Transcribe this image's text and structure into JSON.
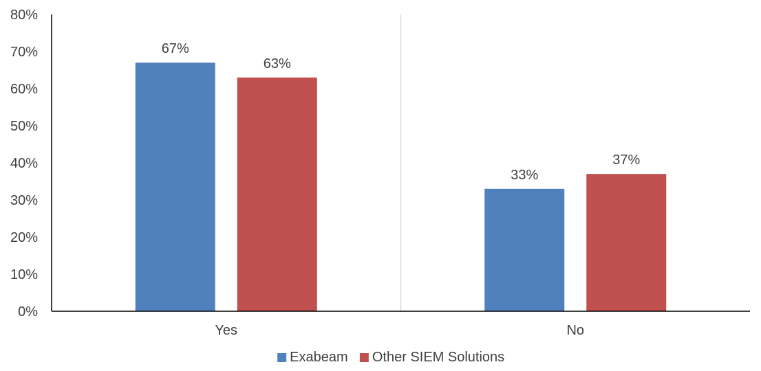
{
  "chart_data": {
    "type": "bar",
    "categories": [
      "Yes",
      "No"
    ],
    "series": [
      {
        "name": "Exabeam",
        "values": [
          67,
          33
        ],
        "color": "#4F81BD"
      },
      {
        "name": "Other SIEM Solutions",
        "values": [
          63,
          37
        ],
        "color": "#C0504D"
      }
    ],
    "data_labels": [
      [
        "67%",
        "33%"
      ],
      [
        "63%",
        "37%"
      ]
    ],
    "ylim": [
      0,
      80
    ],
    "yticks": [
      "0%",
      "10%",
      "20%",
      "30%",
      "40%",
      "50%",
      "60%",
      "70%",
      "80%"
    ],
    "grid": false,
    "category_separator": true,
    "legend_position": "bottom",
    "title": "",
    "xlabel": "",
    "ylabel": ""
  }
}
